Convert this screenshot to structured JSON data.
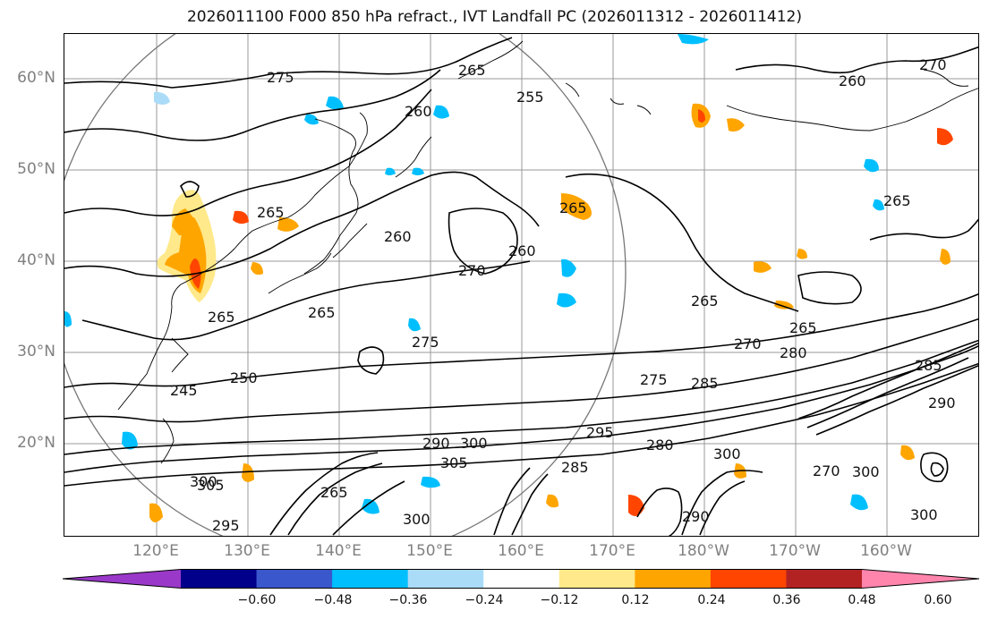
{
  "title": "2026011100 F000 850 hPa refract., IVT Landfall PC (2026011312 - 2026011412)",
  "map": {
    "latitude_labels": [
      "60°N",
      "50°N",
      "40°N",
      "30°N",
      "20°N"
    ],
    "longitude_labels": [
      "120°E",
      "130°E",
      "140°E",
      "150°E",
      "160°E",
      "170°E",
      "180°W",
      "170°W",
      "160°W"
    ],
    "contour_labels": [
      "275",
      "265",
      "270",
      "260",
      "255",
      "260",
      "260",
      "265",
      "265",
      "265",
      "260",
      "265",
      "270",
      "265",
      "265",
      "265",
      "270",
      "280",
      "285",
      "275",
      "275",
      "245",
      "250",
      "295",
      "300",
      "305",
      "300",
      "290",
      "285",
      "280",
      "300",
      "290",
      "300",
      "305",
      "265",
      "270",
      "300",
      "295",
      "285",
      "290",
      "300"
    ],
    "colors": {
      "contour": "#000000",
      "grid": "#999999",
      "coast": "#000000"
    }
  },
  "colorbar": {
    "tick_labels": [
      "−0.60",
      "−0.48",
      "−0.36",
      "−0.24",
      "−0.12",
      "0.12",
      "0.24",
      "0.36",
      "0.48",
      "0.60"
    ],
    "colors": [
      "#9a39c9",
      "#00008b",
      "#3b57cc",
      "#00bfff",
      "#aadcf8",
      "#ffffff",
      "#ffe98a",
      "#ffa500",
      "#ff4500",
      "#b22222",
      "#ff85ad"
    ]
  }
}
